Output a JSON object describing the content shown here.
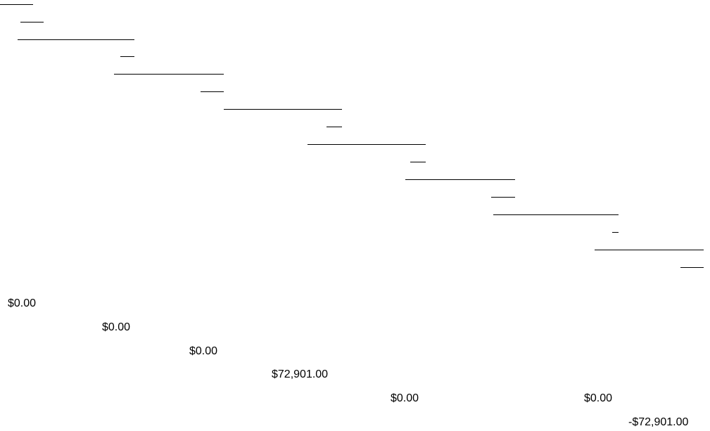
{
  "amounts": [
    "$0.00",
    "$0.00",
    "$0.00",
    "$72,901.00",
    "$0.00",
    "$0.00",
    "-$72,901.00"
  ]
}
